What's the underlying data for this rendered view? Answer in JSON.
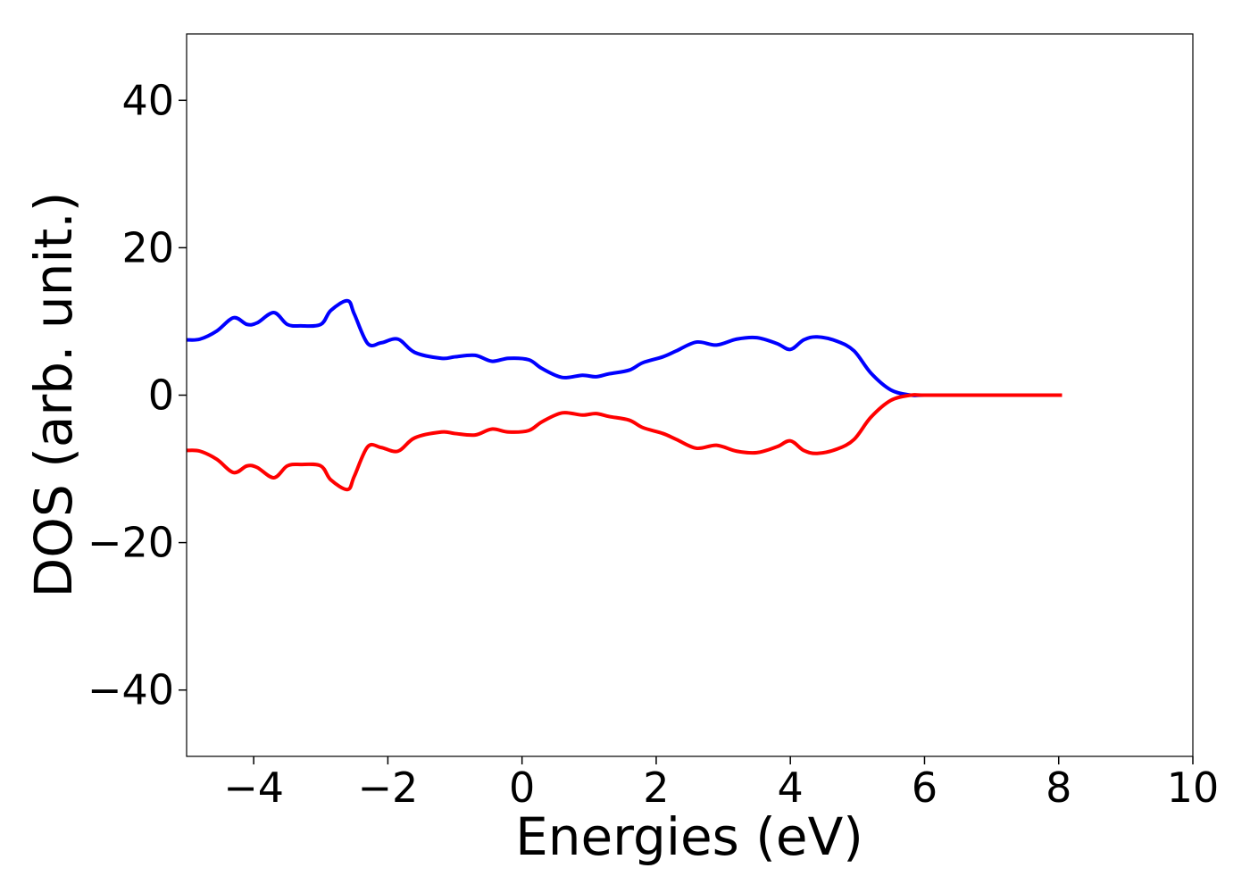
{
  "chart_data": {
    "type": "line",
    "title": "",
    "xlabel": "Energies (eV)",
    "ylabel": "DOS (arb. unit.)",
    "xlim": [
      -5,
      10
    ],
    "ylim": [
      -49,
      49
    ],
    "x_ticks": [
      -4,
      -2,
      0,
      2,
      4,
      6,
      8,
      10
    ],
    "y_ticks": [
      -40,
      -20,
      0,
      20,
      40
    ],
    "x_tick_labels": [
      "−4",
      "−2",
      "0",
      "2",
      "4",
      "6",
      "8",
      "10"
    ],
    "y_tick_labels": [
      "−40",
      "−20",
      "0",
      "20",
      "40"
    ],
    "grid": false,
    "legend": "none",
    "series": [
      {
        "color": "#0000ff",
        "x": [
          -5.0,
          -4.8,
          -4.55,
          -4.3,
          -4.1,
          -3.95,
          -3.7,
          -3.5,
          -3.3,
          -3.0,
          -2.85,
          -2.6,
          -2.5,
          -2.3,
          -2.1,
          -1.85,
          -1.6,
          -1.2,
          -1.0,
          -0.7,
          -0.45,
          -0.2,
          0.1,
          0.3,
          0.6,
          0.9,
          1.1,
          1.3,
          1.6,
          1.8,
          2.1,
          2.3,
          2.6,
          2.9,
          3.2,
          3.5,
          3.8,
          4.0,
          4.2,
          4.4,
          4.7,
          4.95,
          5.2,
          5.5,
          5.8,
          6.0,
          7.0,
          8.05
        ],
        "y": [
          7.5,
          7.6,
          8.7,
          10.5,
          9.6,
          9.8,
          11.2,
          9.6,
          9.4,
          9.6,
          11.5,
          12.8,
          11.0,
          7.0,
          7.1,
          7.6,
          5.8,
          5.0,
          5.2,
          5.4,
          4.6,
          5.0,
          4.8,
          3.6,
          2.4,
          2.7,
          2.5,
          2.9,
          3.4,
          4.4,
          5.2,
          6.0,
          7.2,
          6.8,
          7.6,
          7.8,
          7.0,
          6.2,
          7.5,
          7.9,
          7.3,
          6.0,
          3.0,
          0.7,
          0.0,
          0.0,
          0.0,
          0.0
        ]
      },
      {
        "color": "#ff0000",
        "x": [
          -5.0,
          -4.8,
          -4.55,
          -4.3,
          -4.1,
          -3.95,
          -3.7,
          -3.5,
          -3.3,
          -3.0,
          -2.85,
          -2.6,
          -2.5,
          -2.3,
          -2.1,
          -1.85,
          -1.6,
          -1.2,
          -1.0,
          -0.7,
          -0.45,
          -0.2,
          0.1,
          0.3,
          0.6,
          0.9,
          1.1,
          1.3,
          1.6,
          1.8,
          2.1,
          2.3,
          2.6,
          2.9,
          3.2,
          3.5,
          3.8,
          4.0,
          4.2,
          4.4,
          4.7,
          4.95,
          5.2,
          5.5,
          5.8,
          6.0,
          7.0,
          8.05
        ],
        "y": [
          -7.5,
          -7.6,
          -8.7,
          -10.5,
          -9.6,
          -9.8,
          -11.2,
          -9.6,
          -9.4,
          -9.6,
          -11.5,
          -12.8,
          -11.0,
          -7.0,
          -7.1,
          -7.6,
          -5.8,
          -5.0,
          -5.2,
          -5.4,
          -4.6,
          -5.0,
          -4.8,
          -3.6,
          -2.4,
          -2.7,
          -2.5,
          -2.9,
          -3.4,
          -4.4,
          -5.2,
          -6.0,
          -7.2,
          -6.8,
          -7.6,
          -7.8,
          -7.0,
          -6.2,
          -7.5,
          -7.9,
          -7.3,
          -6.0,
          -3.0,
          -0.7,
          0.0,
          0.0,
          0.0,
          0.0
        ]
      }
    ]
  }
}
